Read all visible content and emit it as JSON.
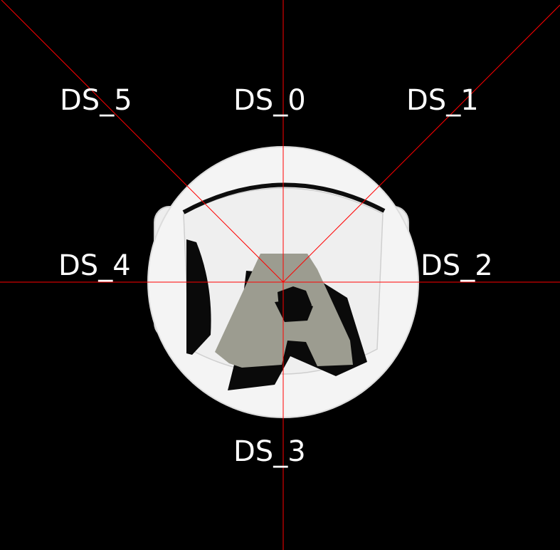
{
  "colors": {
    "background": "#000000",
    "sensor_ray": "#ff0000",
    "robot_body": "#f2f2f2",
    "robot_shadow": "#1a1a1a",
    "logo": "#9c9c90",
    "label": "#ffffff"
  },
  "sensors": [
    {
      "id": "ds0",
      "label": "DS_0",
      "direction": "front"
    },
    {
      "id": "ds1",
      "label": "DS_1",
      "direction": "front-right"
    },
    {
      "id": "ds2",
      "label": "DS_2",
      "direction": "right"
    },
    {
      "id": "ds3",
      "label": "DS_3",
      "direction": "back"
    },
    {
      "id": "ds4",
      "label": "DS_4",
      "direction": "left"
    },
    {
      "id": "ds5",
      "label": "DS_5",
      "direction": "front-left"
    }
  ]
}
